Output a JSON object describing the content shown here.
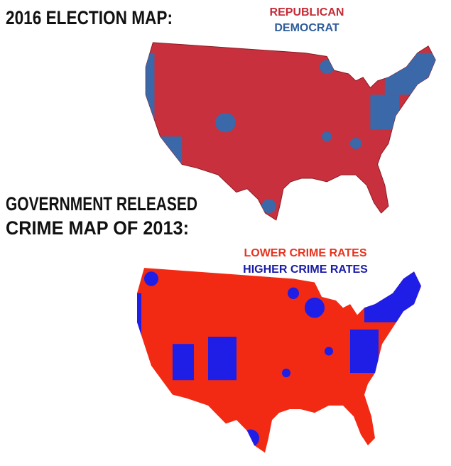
{
  "top_map": {
    "title": "2016 ELECTION MAP:",
    "legend": [
      "REPUBLICAN",
      "DEMOCRAT"
    ]
  },
  "bottom_map": {
    "title_lines": [
      "GOVERNMENT RELEASED",
      "CRIME MAP OF 2013:"
    ],
    "legend": [
      "LOWER CRIME RATES",
      "HIGHER CRIME RATES"
    ]
  }
}
